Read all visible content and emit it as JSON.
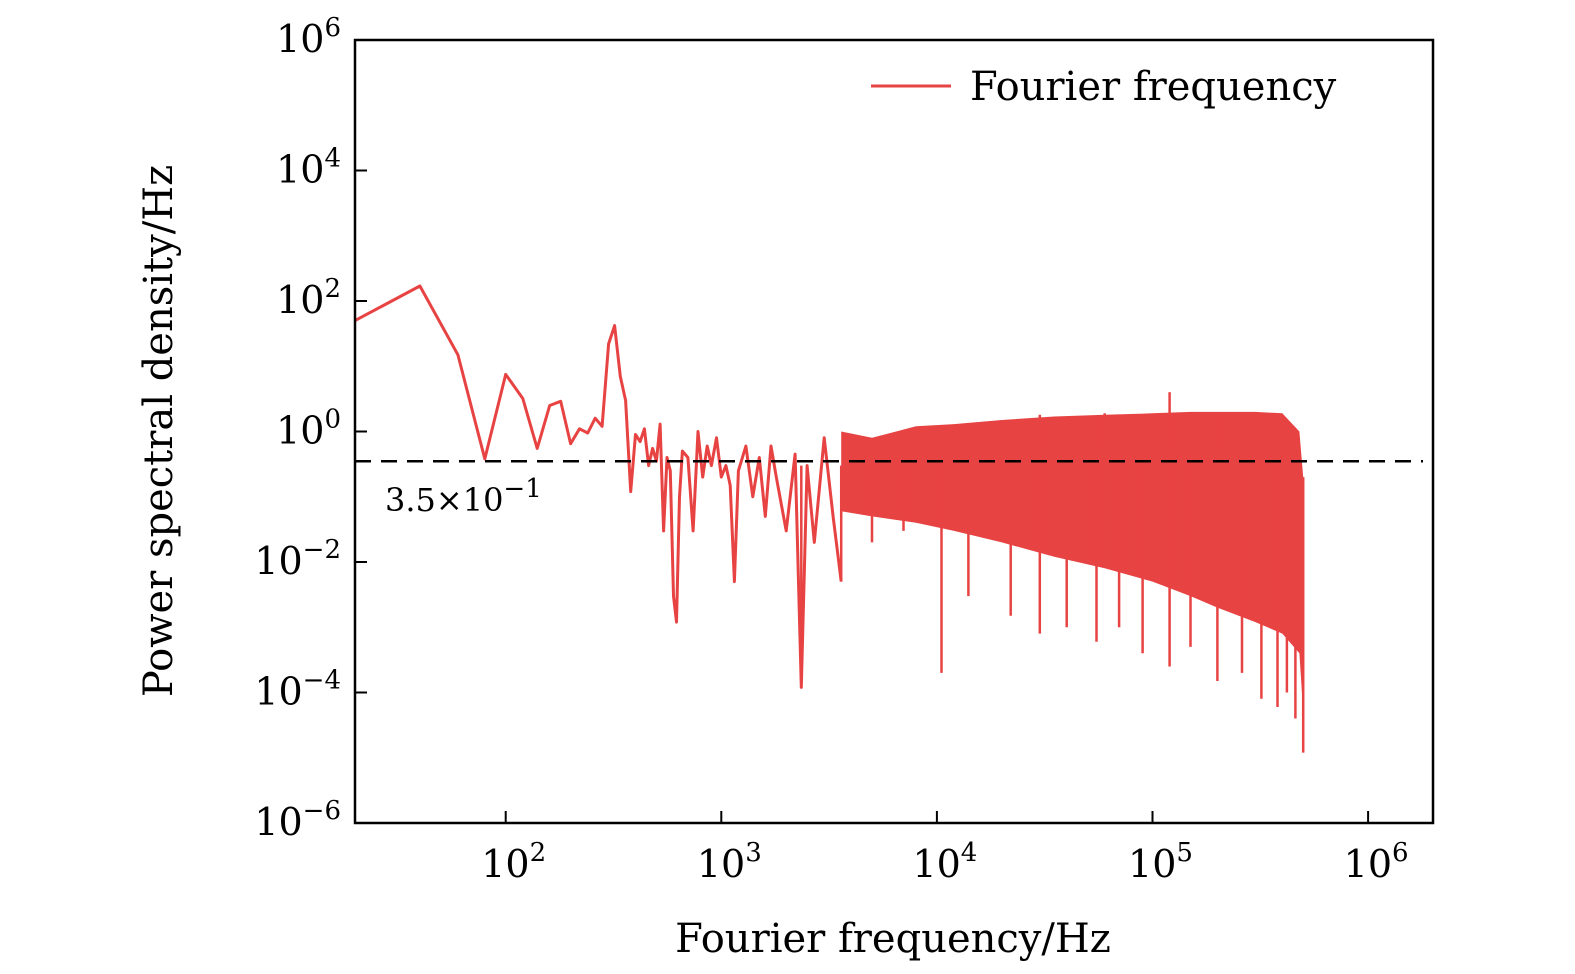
{
  "chart_data": {
    "type": "line",
    "xlabel": "Fourier frequency/Hz",
    "ylabel": "Power spectral density/Hz",
    "xscale": "log",
    "yscale": "log",
    "xlim": [
      20,
      2000000
    ],
    "ylim": [
      1e-06,
      1000000
    ],
    "grid": false,
    "legend_position": "top-right",
    "x_ticks": [
      {
        "base": "10",
        "exp": "2",
        "value": 100
      },
      {
        "base": "10",
        "exp": "3",
        "value": 1000
      },
      {
        "base": "10",
        "exp": "4",
        "value": 10000
      },
      {
        "base": "10",
        "exp": "5",
        "value": 100000
      },
      {
        "base": "10",
        "exp": "6",
        "value": 1000000
      }
    ],
    "y_ticks": [
      {
        "base": "10",
        "exp": "6",
        "value": 1000000
      },
      {
        "base": "10",
        "exp": "4",
        "value": 10000
      },
      {
        "base": "10",
        "exp": "2",
        "value": 100
      },
      {
        "base": "10",
        "exp": "0",
        "value": 1
      },
      {
        "base": "10",
        "exp": "−2",
        "value": 0.01
      },
      {
        "base": "10",
        "exp": "−4",
        "value": 0.0001
      },
      {
        "base": "10",
        "exp": "−6",
        "value": 1e-06
      }
    ],
    "series": [
      {
        "name": "Fourier frequency",
        "color": "#e84343",
        "points": [
          [
            20,
            50
          ],
          [
            40,
            170
          ],
          [
            60,
            15
          ],
          [
            80,
            0.38
          ],
          [
            100,
            7.5
          ],
          [
            120,
            3.2
          ],
          [
            140,
            0.55
          ],
          [
            160,
            2.5
          ],
          [
            180,
            2.9
          ],
          [
            200,
            0.65
          ],
          [
            220,
            1.1
          ],
          [
            240,
            0.95
          ],
          [
            260,
            1.6
          ],
          [
            280,
            1.2
          ],
          [
            300,
            22
          ],
          [
            320,
            42
          ],
          [
            340,
            7
          ],
          [
            360,
            3
          ],
          [
            380,
            0.12
          ],
          [
            400,
            0.9
          ],
          [
            420,
            0.7
          ],
          [
            440,
            1.1
          ],
          [
            460,
            0.3
          ],
          [
            480,
            0.55
          ],
          [
            500,
            0.35
          ],
          [
            520,
            1.3
          ],
          [
            540,
            0.03
          ],
          [
            560,
            0.4
          ],
          [
            580,
            0.25
          ],
          [
            600,
            0.003
          ],
          [
            620,
            0.0012
          ],
          [
            640,
            0.1
          ],
          [
            660,
            0.5
          ],
          [
            700,
            0.4
          ],
          [
            740,
            0.03
          ],
          [
            780,
            1.0
          ],
          [
            820,
            0.2
          ],
          [
            860,
            0.6
          ],
          [
            900,
            0.3
          ],
          [
            950,
            0.8
          ],
          [
            1000,
            0.2
          ],
          [
            1050,
            0.3
          ],
          [
            1100,
            0.15
          ],
          [
            1150,
            0.005
          ],
          [
            1200,
            0.25
          ],
          [
            1300,
            0.6
          ],
          [
            1400,
            0.1
          ],
          [
            1500,
            0.4
          ],
          [
            1600,
            0.05
          ],
          [
            1700,
            0.6
          ],
          [
            1800,
            0.2
          ],
          [
            2000,
            0.03
          ],
          [
            2200,
            0.45
          ],
          [
            2350,
            0.00012
          ],
          [
            2500,
            0.3
          ],
          [
            2700,
            0.02
          ],
          [
            3000,
            0.8
          ],
          [
            3300,
            0.05
          ],
          [
            3600,
            0.005
          ]
        ],
        "band": {
          "x": [
            3600,
            5000,
            8000,
            12000,
            20000,
            35000,
            60000,
            100000,
            150000,
            200000,
            300000,
            400000,
            480000,
            500000
          ],
          "upper": [
            1.0,
            0.8,
            1.2,
            1.3,
            1.5,
            1.7,
            1.8,
            1.9,
            2.0,
            2.0,
            2.0,
            1.9,
            1.0,
            0.2
          ],
          "lower": [
            0.06,
            0.05,
            0.04,
            0.03,
            0.02,
            0.012,
            0.008,
            0.005,
            0.003,
            0.002,
            0.0012,
            0.0008,
            0.0004,
            5e-05
          ]
        },
        "dips": [
          [
            2350,
            0.00012
          ],
          [
            3600,
            0.005
          ],
          [
            5000,
            0.02
          ],
          [
            7000,
            0.03
          ],
          [
            10500,
            0.0002
          ],
          [
            14000,
            0.003
          ],
          [
            22000,
            0.0015
          ],
          [
            30000,
            0.0008
          ],
          [
            40000,
            0.001
          ],
          [
            55000,
            0.0006
          ],
          [
            70000,
            0.001
          ],
          [
            90000,
            0.0004
          ],
          [
            120000,
            0.00025
          ],
          [
            150000,
            0.0005
          ],
          [
            200000,
            0.00015
          ],
          [
            260000,
            0.0002
          ],
          [
            320000,
            8e-05
          ],
          [
            380000,
            6e-05
          ],
          [
            420000,
            0.0001
          ],
          [
            460000,
            4e-05
          ],
          [
            500000,
            1.2e-05
          ]
        ],
        "spikes": [
          [
            120000,
            4.0
          ],
          [
            30000,
            1.8
          ],
          [
            60000,
            1.9
          ],
          [
            200000,
            1.8
          ]
        ]
      }
    ],
    "reference_line": {
      "y": 0.35,
      "style": "dashed",
      "color": "#000000",
      "label_base": "3.5×10",
      "label_exp": "−1"
    }
  }
}
